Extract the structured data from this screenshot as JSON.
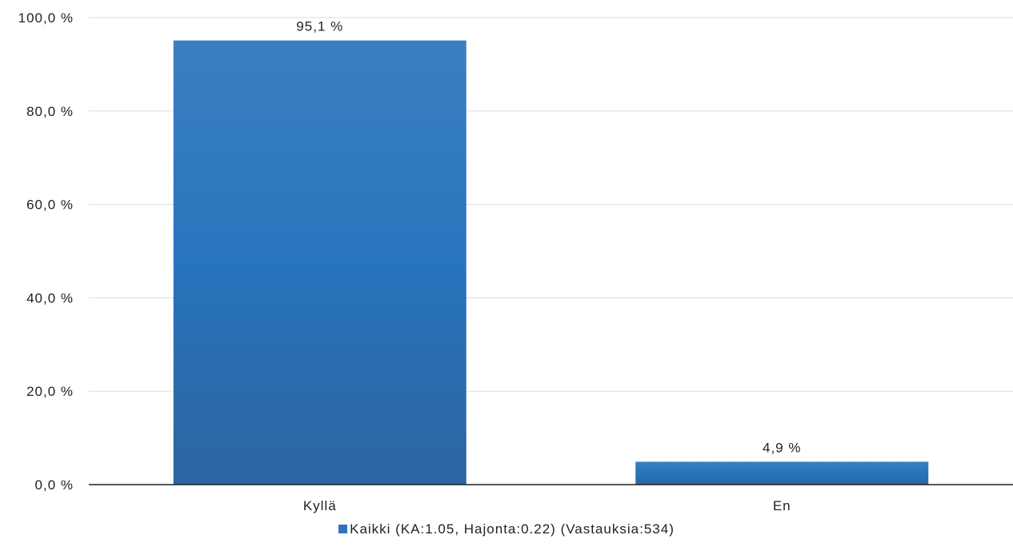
{
  "chart_data": {
    "type": "bar",
    "categories": [
      "Kyllä",
      "En"
    ],
    "series": [
      {
        "name": "Kaikki (KA:1.05, Hajonta:0.22) (Vastauksia:534)",
        "values": [
          95.1,
          4.9
        ]
      }
    ],
    "value_labels": [
      "95,1 %",
      "4,9 %"
    ],
    "y_ticks": [
      "0,0 %",
      "20,0 %",
      "40,0 %",
      "60,0 %",
      "80,0 %",
      "100,0 %"
    ],
    "ylim": [
      0,
      100
    ],
    "title": "",
    "xlabel": "",
    "ylabel": "",
    "grid": true,
    "legend_position": "bottom-center",
    "bar_color": "#2f74ba",
    "gridline_color": "#dddddd"
  }
}
